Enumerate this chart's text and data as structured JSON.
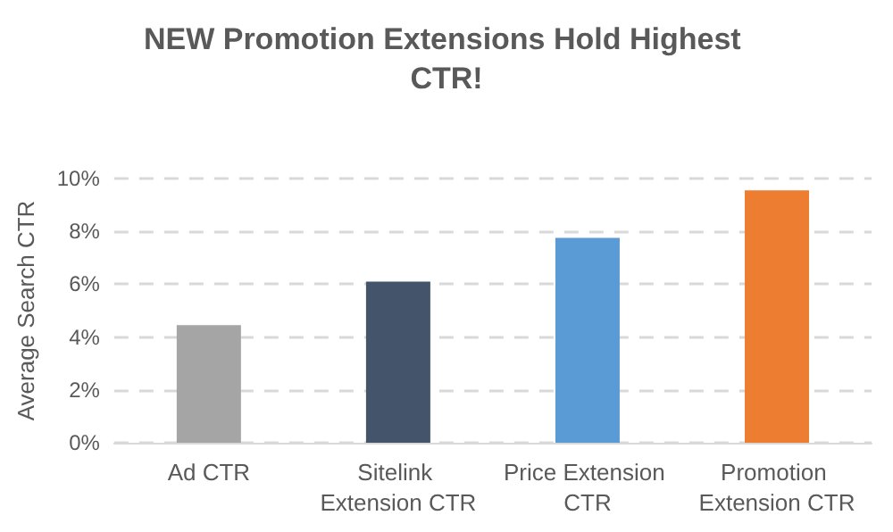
{
  "chart_data": {
    "type": "bar",
    "title": "NEW Promotion Extensions Hold Highest CTR!",
    "ylabel": "Average Search CTR",
    "categories": [
      "Ad CTR",
      "Sitelink Extension CTR",
      "Price Extension CTR",
      "Promotion Extension CTR"
    ],
    "values": [
      4.45,
      6.1,
      7.75,
      9.55
    ],
    "colors": [
      "#a5a5a5",
      "#44546a",
      "#5b9bd5",
      "#ed7d31"
    ],
    "ylim": [
      0,
      10
    ],
    "yticks": [
      {
        "value": 0,
        "label": "0%"
      },
      {
        "value": 2,
        "label": "2%"
      },
      {
        "value": 4,
        "label": "4%"
      },
      {
        "value": 6,
        "label": "6%"
      },
      {
        "value": 8,
        "label": "8%"
      },
      {
        "value": 10,
        "label": "10%"
      }
    ],
    "grid": "y"
  }
}
